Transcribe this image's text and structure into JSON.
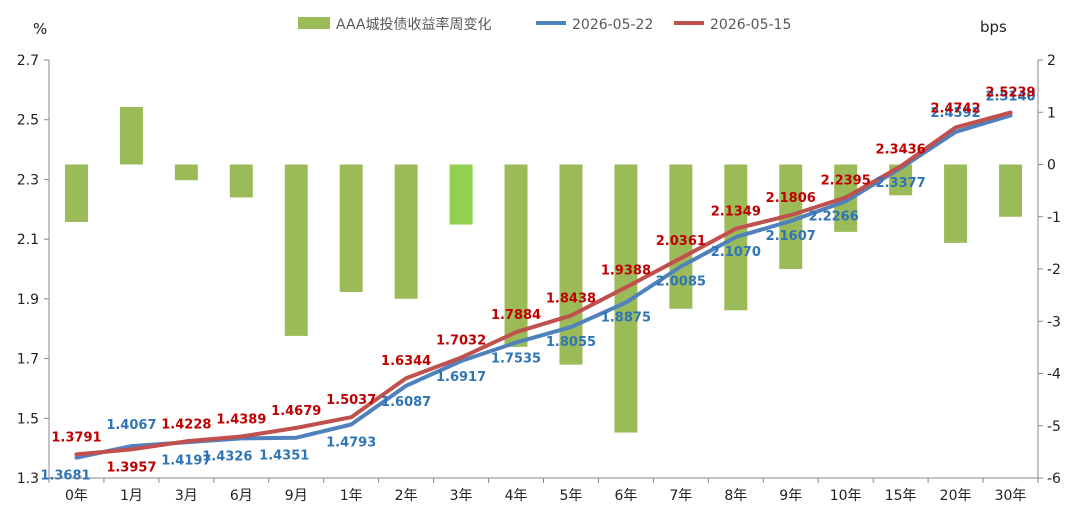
{
  "chart_data": {
    "type": "bar+line",
    "title": "",
    "left_axis": {
      "unit": "%",
      "ticks": [
        "1.3",
        "1.5",
        "1.7",
        "1.9",
        "2.1",
        "2.3",
        "2.5",
        "2.7"
      ],
      "min": 1.3,
      "max": 2.7
    },
    "right_axis": {
      "unit": "bps",
      "ticks": [
        "-6",
        "-5",
        "-4",
        "-3",
        "-2",
        "-1",
        "0",
        "1",
        "2"
      ],
      "min": -6,
      "max": 2
    },
    "categories": [
      "0年",
      "1月",
      "3月",
      "6月",
      "9月",
      "1年",
      "2年",
      "3年",
      "4年",
      "5年",
      "6年",
      "7年",
      "8年",
      "9年",
      "10年",
      "15年",
      "20年",
      "30年"
    ],
    "bar_series": {
      "name": "AAA城投债收益率周变化",
      "color": "#9BBB59",
      "highlight_color": "#92D050",
      "highlight_index": 7,
      "values": [
        -1.1,
        1.1,
        -0.3,
        -0.63,
        -3.28,
        -2.44,
        -2.57,
        -1.15,
        -3.49,
        -3.83,
        -5.13,
        -2.76,
        -2.79,
        -2.0,
        -1.29,
        -0.59,
        -1.5,
        -1.0
      ]
    },
    "line_series": [
      {
        "name": "2026-05-22",
        "color": "#4F81BD",
        "label_color": "#2E75B6",
        "labels": [
          "1.3681",
          "1.4067",
          "1.4197",
          "1.4326",
          "1.4351",
          "1.4793",
          "1.6087",
          "1.6917",
          "1.7535",
          "1.8055",
          "1.8875",
          "2.0085",
          "2.1070",
          "2.1607",
          "2.2266",
          "2.3377",
          "2.4592",
          "2.5140"
        ],
        "values": [
          1.3681,
          1.4067,
          1.4197,
          1.4326,
          1.4351,
          1.4793,
          1.6087,
          1.6917,
          1.7535,
          1.8055,
          1.8875,
          2.0085,
          2.107,
          2.1607,
          2.2266,
          2.3377,
          2.4592,
          2.514
        ]
      },
      {
        "name": "2026-05-15",
        "color": "#C0504D",
        "label_color": "#C00000",
        "labels": [
          "1.3791",
          "1.3957",
          "1.4228",
          "1.4389",
          "1.4679",
          "1.5037",
          "1.6344",
          "1.7032",
          "1.7884",
          "1.8438",
          "1.9388",
          "2.0361",
          "2.1349",
          "2.1806",
          "2.2395",
          "2.3436",
          "2.4742",
          "2.5239"
        ],
        "values": [
          1.3791,
          1.3957,
          1.4228,
          1.4389,
          1.4679,
          1.5037,
          1.6344,
          1.7032,
          1.7884,
          1.8438,
          1.9388,
          2.0361,
          2.1349,
          2.1806,
          2.2395,
          2.3436,
          2.4742,
          2.5239
        ]
      }
    ],
    "legend_position": "top",
    "grid": false
  }
}
